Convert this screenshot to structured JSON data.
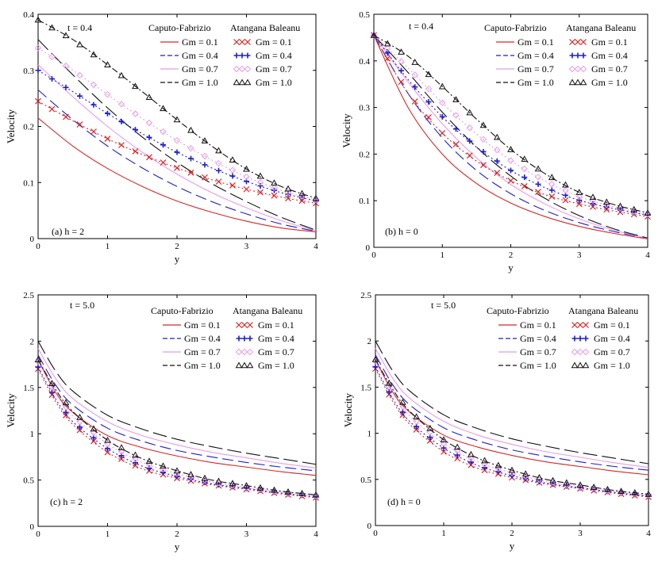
{
  "colors": {
    "gm01": "#d62728",
    "gm04": "#1f1fcc",
    "gm07": "#e89be8",
    "gm10": "#111111"
  },
  "legend": {
    "cf_title": "Caputo-Fabrizio",
    "ab_title": "Atangana Baleanu",
    "entries": [
      "Gm = 0.1",
      "Gm = 0.4",
      "Gm = 0.7",
      "Gm = 1.0"
    ],
    "ab_marker_icons": [
      "cross-marker-icon",
      "plus-marker-icon",
      "diamond-marker-icon",
      "triangle-marker-icon"
    ]
  },
  "chart_data": [
    {
      "type": "line",
      "panel_label": "(a)   h  =  2",
      "time_label": "t  = 0.4",
      "xlabel": "y",
      "ylabel": "Velocity",
      "xlim": [
        0,
        4
      ],
      "ylim": [
        0,
        0.4
      ],
      "xticks": [
        "0",
        "1",
        "2",
        "3",
        "4"
      ],
      "yticks": [
        "0",
        "0.1",
        "0.2",
        "0.3",
        "0.4"
      ],
      "x": [
        0,
        0.5,
        1,
        1.5,
        2,
        2.5,
        3,
        3.5,
        4
      ],
      "series": [
        {
          "name": "Caputo-Fabrizio Gm = 0.1",
          "values": [
            0.215,
            0.165,
            0.125,
            0.093,
            0.067,
            0.047,
            0.031,
            0.019,
            0.012
          ]
        },
        {
          "name": "Caputo-Fabrizio Gm = 0.4",
          "values": [
            0.265,
            0.212,
            0.165,
            0.126,
            0.093,
            0.066,
            0.044,
            0.026,
            0.013
          ]
        },
        {
          "name": "Caputo-Fabrizio Gm = 0.7",
          "values": [
            0.31,
            0.253,
            0.2,
            0.154,
            0.115,
            0.082,
            0.055,
            0.032,
            0.014
          ]
        },
        {
          "name": "Caputo-Fabrizio Gm = 1.0",
          "values": [
            0.355,
            0.292,
            0.233,
            0.181,
            0.136,
            0.098,
            0.066,
            0.038,
            0.015
          ]
        },
        {
          "name": "Atangana Baleanu Gm = 0.1",
          "values": [
            0.245,
            0.21,
            0.178,
            0.15,
            0.126,
            0.105,
            0.088,
            0.074,
            0.063
          ]
        },
        {
          "name": "Atangana Baleanu Gm = 0.4",
          "values": [
            0.3,
            0.262,
            0.223,
            0.187,
            0.154,
            0.126,
            0.102,
            0.082,
            0.067
          ]
        },
        {
          "name": "Atangana Baleanu Gm = 0.7",
          "values": [
            0.34,
            0.3,
            0.257,
            0.214,
            0.175,
            0.14,
            0.11,
            0.086,
            0.069
          ]
        },
        {
          "name": "Atangana Baleanu Gm = 1.0",
          "values": [
            0.39,
            0.355,
            0.31,
            0.262,
            0.212,
            0.165,
            0.124,
            0.093,
            0.072
          ]
        }
      ]
    },
    {
      "type": "line",
      "panel_label": "(b)   h  =  0",
      "time_label": "t  = 0.4",
      "xlabel": "y",
      "ylabel": "Velocity",
      "xlim": [
        0,
        4
      ],
      "ylim": [
        0,
        0.5
      ],
      "xticks": [
        "0",
        "1",
        "2",
        "3",
        "4"
      ],
      "yticks": [
        "0",
        "0.1",
        "0.2",
        "0.3",
        "0.4",
        "0.5"
      ],
      "x": [
        0,
        0.5,
        1,
        1.5,
        2,
        2.5,
        3,
        3.5,
        4
      ],
      "series": [
        {
          "name": "Caputo-Fabrizio Gm = 0.1",
          "values": [
            0.455,
            0.3,
            0.2,
            0.137,
            0.095,
            0.066,
            0.045,
            0.03,
            0.018
          ]
        },
        {
          "name": "Caputo-Fabrizio Gm = 0.4",
          "values": [
            0.455,
            0.33,
            0.235,
            0.165,
            0.115,
            0.079,
            0.053,
            0.034,
            0.019
          ]
        },
        {
          "name": "Caputo-Fabrizio Gm = 0.7",
          "values": [
            0.455,
            0.355,
            0.265,
            0.192,
            0.135,
            0.093,
            0.061,
            0.037,
            0.019
          ]
        },
        {
          "name": "Caputo-Fabrizio Gm = 1.0",
          "values": [
            0.455,
            0.375,
            0.29,
            0.215,
            0.153,
            0.105,
            0.068,
            0.04,
            0.02
          ]
        },
        {
          "name": "Atangana Baleanu Gm = 0.1",
          "values": [
            0.455,
            0.33,
            0.245,
            0.185,
            0.143,
            0.113,
            0.093,
            0.078,
            0.066
          ]
        },
        {
          "name": "Atangana Baleanu Gm = 0.4",
          "values": [
            0.455,
            0.36,
            0.28,
            0.215,
            0.165,
            0.128,
            0.101,
            0.083,
            0.069
          ]
        },
        {
          "name": "Atangana Baleanu Gm = 0.7",
          "values": [
            0.455,
            0.385,
            0.31,
            0.243,
            0.186,
            0.142,
            0.109,
            0.087,
            0.071
          ]
        },
        {
          "name": "Atangana Baleanu Gm = 1.0",
          "values": [
            0.455,
            0.41,
            0.345,
            0.275,
            0.21,
            0.158,
            0.118,
            0.092,
            0.074
          ]
        }
      ]
    },
    {
      "type": "line",
      "panel_label": "(c)   h  =  2",
      "time_label": "t  =  5.0",
      "xlabel": "y",
      "ylabel": "Velocity",
      "xlim": [
        0,
        4
      ],
      "ylim": [
        0,
        2.5
      ],
      "xticks": [
        "0",
        "1",
        "2",
        "3",
        "4"
      ],
      "yticks": [
        "0",
        "0.5",
        "1",
        "1.5",
        "2",
        "2.5"
      ],
      "x": [
        0,
        0.25,
        0.5,
        1,
        1.5,
        2,
        2.5,
        3,
        3.5,
        4
      ],
      "series": [
        {
          "name": "Caputo-Fabrizio Gm = 0.1",
          "values": [
            1.8,
            1.45,
            1.23,
            0.98,
            0.85,
            0.76,
            0.69,
            0.64,
            0.59,
            0.55
          ]
        },
        {
          "name": "Caputo-Fabrizio Gm = 0.4",
          "values": [
            1.85,
            1.53,
            1.31,
            1.06,
            0.92,
            0.82,
            0.75,
            0.69,
            0.64,
            0.6
          ]
        },
        {
          "name": "Caputo-Fabrizio Gm = 0.7",
          "values": [
            1.92,
            1.6,
            1.38,
            1.13,
            0.98,
            0.88,
            0.8,
            0.74,
            0.68,
            0.63
          ]
        },
        {
          "name": "Caputo-Fabrizio Gm = 1.0",
          "values": [
            2.0,
            1.68,
            1.46,
            1.2,
            1.05,
            0.94,
            0.86,
            0.79,
            0.73,
            0.67
          ]
        },
        {
          "name": "Atangana Baleanu Gm = 0.1",
          "values": [
            1.7,
            1.35,
            1.1,
            0.8,
            0.62,
            0.52,
            0.45,
            0.4,
            0.35,
            0.31
          ]
        },
        {
          "name": "Atangana Baleanu Gm = 0.4",
          "values": [
            1.72,
            1.38,
            1.13,
            0.84,
            0.65,
            0.54,
            0.46,
            0.41,
            0.36,
            0.32
          ]
        },
        {
          "name": "Atangana Baleanu Gm = 0.7",
          "values": [
            1.78,
            1.44,
            1.19,
            0.89,
            0.69,
            0.57,
            0.48,
            0.42,
            0.37,
            0.33
          ]
        },
        {
          "name": "Atangana Baleanu Gm = 1.0",
          "values": [
            1.8,
            1.48,
            1.24,
            0.93,
            0.73,
            0.6,
            0.5,
            0.44,
            0.38,
            0.34
          ]
        }
      ]
    },
    {
      "type": "line",
      "panel_label": "(d)   h  =  0",
      "time_label": "t  =  5.0",
      "xlabel": "y",
      "ylabel": "Velocity",
      "xlim": [
        0,
        4
      ],
      "ylim": [
        0,
        2.5
      ],
      "xticks": [
        "0",
        "1",
        "2",
        "3",
        "4"
      ],
      "yticks": [
        "0",
        "0.5",
        "1",
        "1.5",
        "2",
        "2.5"
      ],
      "x": [
        0,
        0.25,
        0.5,
        1,
        1.5,
        2,
        2.5,
        3,
        3.5,
        4
      ],
      "series": [
        {
          "name": "Caputo-Fabrizio Gm = 0.1",
          "values": [
            1.8,
            1.45,
            1.23,
            0.98,
            0.85,
            0.76,
            0.69,
            0.64,
            0.59,
            0.55
          ]
        },
        {
          "name": "Caputo-Fabrizio Gm = 0.4",
          "values": [
            1.85,
            1.53,
            1.31,
            1.06,
            0.92,
            0.82,
            0.75,
            0.69,
            0.64,
            0.6
          ]
        },
        {
          "name": "Caputo-Fabrizio Gm = 0.7",
          "values": [
            1.92,
            1.6,
            1.38,
            1.13,
            0.98,
            0.88,
            0.8,
            0.74,
            0.68,
            0.63
          ]
        },
        {
          "name": "Caputo-Fabrizio Gm = 1.0",
          "values": [
            2.0,
            1.68,
            1.46,
            1.2,
            1.05,
            0.94,
            0.86,
            0.79,
            0.73,
            0.67
          ]
        },
        {
          "name": "Atangana Baleanu Gm = 0.1",
          "values": [
            1.7,
            1.35,
            1.1,
            0.8,
            0.62,
            0.52,
            0.45,
            0.4,
            0.35,
            0.31
          ]
        },
        {
          "name": "Atangana Baleanu Gm = 0.4",
          "values": [
            1.72,
            1.38,
            1.13,
            0.84,
            0.65,
            0.54,
            0.46,
            0.41,
            0.36,
            0.32
          ]
        },
        {
          "name": "Atangana Baleanu Gm = 0.7",
          "values": [
            1.78,
            1.44,
            1.19,
            0.89,
            0.69,
            0.57,
            0.48,
            0.42,
            0.37,
            0.33
          ]
        },
        {
          "name": "Atangana Baleanu Gm = 1.0",
          "values": [
            1.8,
            1.48,
            1.24,
            0.93,
            0.73,
            0.6,
            0.5,
            0.44,
            0.38,
            0.34
          ]
        }
      ]
    }
  ]
}
